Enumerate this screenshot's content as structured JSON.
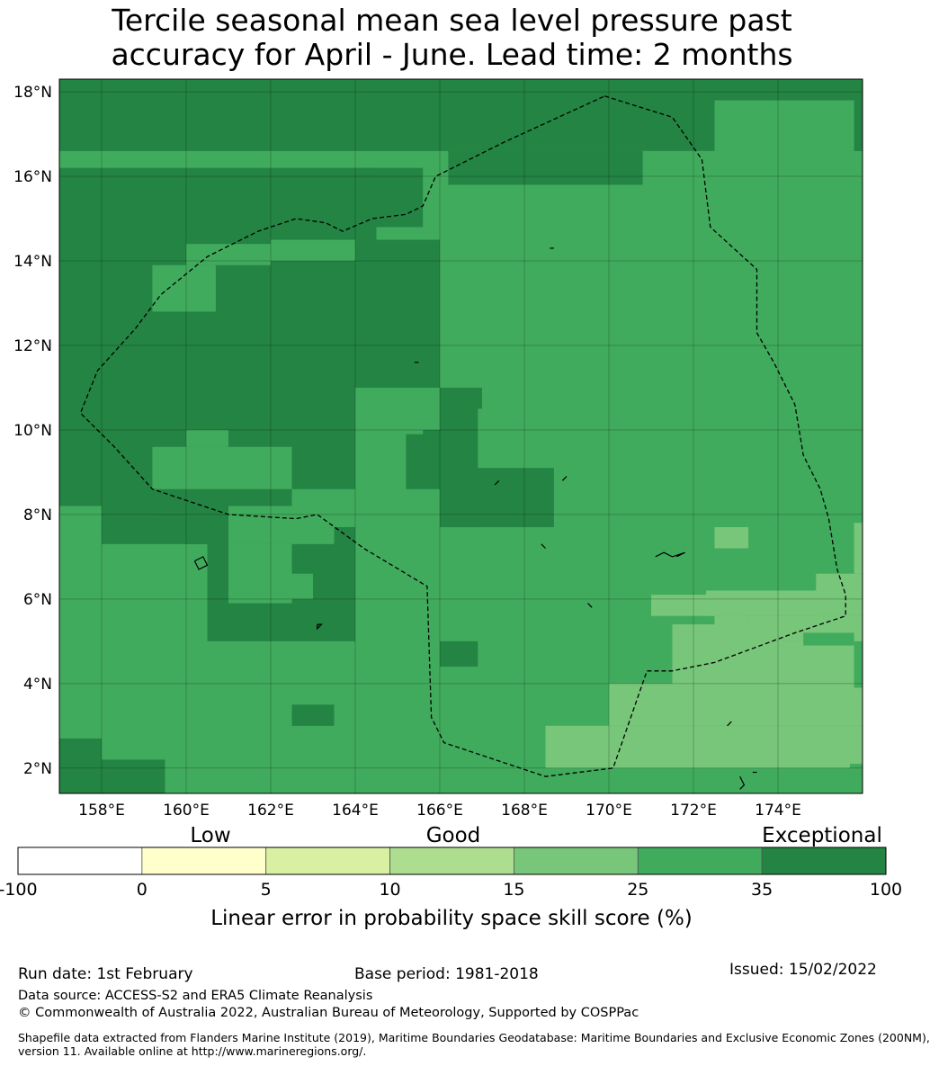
{
  "title": {
    "line1": "Tercile seasonal mean sea level pressure past",
    "line2": "accuracy for April - June. Lead time: 2 months"
  },
  "map": {
    "lon_range": [
      157,
      176
    ],
    "lat_range": [
      1.4,
      18.3
    ],
    "lon_ticks": [
      {
        "value": 158,
        "label": "158°E"
      },
      {
        "value": 160,
        "label": "160°E"
      },
      {
        "value": 162,
        "label": "162°E"
      },
      {
        "value": 164,
        "label": "164°E"
      },
      {
        "value": 166,
        "label": "166°E"
      },
      {
        "value": 168,
        "label": "168°E"
      },
      {
        "value": 170,
        "label": "170°E"
      },
      {
        "value": 172,
        "label": "172°E"
      },
      {
        "value": 174,
        "label": "174°E"
      }
    ],
    "lat_ticks": [
      {
        "value": 18,
        "label": "18°N"
      },
      {
        "value": 16,
        "label": "16°N"
      },
      {
        "value": 14,
        "label": "14°N"
      },
      {
        "value": 12,
        "label": "12°N"
      },
      {
        "value": 10,
        "label": "10°N"
      },
      {
        "value": 8,
        "label": "8°N"
      },
      {
        "value": 6,
        "label": "6°N"
      },
      {
        "value": 4,
        "label": "4°N"
      },
      {
        "value": 2,
        "label": "2°N"
      }
    ],
    "background_class": 5,
    "skill_regions": [
      {
        "class": 6,
        "cells": [
          [
            157,
            16.6,
            176,
            18.3
          ]
        ]
      },
      {
        "class": 5,
        "cells": [
          [
            172.5,
            15.8,
            175.8,
            17.8
          ],
          [
            170.8,
            15.0,
            175.8,
            16.6
          ],
          [
            165,
            14.8,
            175.8,
            15.0
          ],
          [
            167.5,
            4.4,
            175.8,
            14.8
          ],
          [
            164,
            7.7,
            167.5,
            14.2
          ],
          [
            166,
            4.4,
            167.5,
            7.7
          ]
        ]
      },
      {
        "class": 6,
        "cells": [
          [
            157,
            14.5,
            164.5,
            16.2
          ],
          [
            164,
            14.8,
            165.6,
            16.2
          ],
          [
            166.2,
            15.8,
            170.8,
            16.6
          ],
          [
            157,
            5.0,
            164,
            14.5
          ],
          [
            164,
            11.0,
            166,
            14.5
          ],
          [
            166,
            10.5,
            167,
            11.0
          ],
          [
            166,
            7.7,
            168.7,
            9.1
          ],
          [
            166,
            7.7,
            166.9,
            10.5
          ],
          [
            165.2,
            8.6,
            166,
            10.0
          ]
        ]
      },
      {
        "class": 5,
        "cells": [
          [
            157,
            3.5,
            158,
            8.2
          ],
          [
            158,
            4.4,
            160.5,
            7.3
          ],
          [
            159.2,
            8.6,
            162.5,
            9.6
          ],
          [
            160,
            9.6,
            161,
            10.0
          ],
          [
            159.2,
            12.8,
            160.7,
            13.9
          ],
          [
            160,
            13.9,
            162,
            14.4
          ],
          [
            162,
            14.0,
            164,
            14.5
          ],
          [
            161,
            7.3,
            163.5,
            8.2
          ],
          [
            162.5,
            7.7,
            164,
            8.6
          ],
          [
            161,
            5.9,
            162.5,
            7.3
          ],
          [
            162.5,
            6.0,
            163,
            6.6
          ],
          [
            157,
            3.0,
            162.5,
            4.4
          ],
          [
            157,
            2.2,
            166,
            3.0
          ],
          [
            159.5,
            1.4,
            168.5,
            2.2
          ],
          [
            164,
            4.4,
            165.7,
            6.0
          ],
          [
            166,
            2.2,
            167.5,
            4.4
          ],
          [
            164.7,
            9.9,
            165.6,
            10.5
          ]
        ]
      },
      {
        "class": 6,
        "cells": [
          [
            157,
            1.4,
            158,
            2.7
          ],
          [
            158,
            1.4,
            159.5,
            2.2
          ],
          [
            162.5,
            3.0,
            163.5,
            3.5
          ],
          [
            166,
            4.4,
            166.9,
            5.0
          ],
          [
            160,
            7.3,
            161,
            7.9
          ],
          [
            159.2,
            8.0,
            160,
            8.5
          ]
        ]
      },
      {
        "class": 4,
        "cells": [
          [
            168.5,
            2.0,
            176,
            3.0
          ],
          [
            170,
            3.0,
            176,
            4.0
          ],
          [
            171.5,
            4.0,
            175.8,
            5.0
          ],
          [
            171.5,
            4.0,
            174,
            5.4
          ],
          [
            173.3,
            5.0,
            176,
            5.6
          ],
          [
            172.3,
            5.6,
            175.8,
            6.2
          ],
          [
            171,
            5.6,
            173.3,
            6.1
          ],
          [
            172.5,
            5.2,
            173.3,
            5.6
          ],
          [
            172.5,
            7.2,
            173.3,
            7.7
          ],
          [
            174.9,
            5.6,
            176,
            6.6
          ],
          [
            175.8,
            6.6,
            176,
            7.8
          ]
        ]
      },
      {
        "class": 5,
        "cells": [
          [
            174.6,
            4.9,
            175.8,
            5.2
          ],
          [
            175.7,
            1.4,
            176,
            2.1
          ],
          [
            173.7,
            1.4,
            174.7,
            1.6
          ],
          [
            175.8,
            3.9,
            176,
            4.4
          ]
        ]
      }
    ],
    "zones": [
      {
        "name": "zone-east",
        "path": [
          [
            169.9,
            17.9
          ],
          [
            171.5,
            17.4
          ],
          [
            172.2,
            16.4
          ],
          [
            172.4,
            14.8
          ],
          [
            173.5,
            13.8
          ],
          [
            173.5,
            12.3
          ],
          [
            173.9,
            11.6
          ],
          [
            174.4,
            10.6
          ],
          [
            174.6,
            9.4
          ],
          [
            175.0,
            8.6
          ],
          [
            175.2,
            7.9
          ],
          [
            175.4,
            6.7
          ],
          [
            175.6,
            6.1
          ],
          [
            175.6,
            5.6
          ],
          [
            174.4,
            5.2
          ],
          [
            172.5,
            4.5
          ],
          [
            171.5,
            4.3
          ],
          [
            170.9,
            4.3
          ],
          [
            170.1,
            2.0
          ],
          [
            168.5,
            1.8
          ],
          [
            166.1,
            2.6
          ],
          [
            165.8,
            3.2
          ],
          [
            165.7,
            6.3
          ],
          [
            164.2,
            7.2
          ],
          [
            163.1,
            8.0
          ],
          [
            162.6,
            7.9
          ],
          [
            161.0,
            8.0
          ],
          [
            159.2,
            8.6
          ],
          [
            158.3,
            9.6
          ],
          [
            157.5,
            10.4
          ],
          [
            157.9,
            11.4
          ],
          [
            158.8,
            12.4
          ],
          [
            159.4,
            13.2
          ],
          [
            160.5,
            14.1
          ],
          [
            161.7,
            14.7
          ],
          [
            162.6,
            15.0
          ],
          [
            163.3,
            14.9
          ],
          [
            163.7,
            14.7
          ],
          [
            164.4,
            15.0
          ],
          [
            165.2,
            15.1
          ],
          [
            165.6,
            15.3
          ],
          [
            165.9,
            16.0
          ],
          [
            167.5,
            16.8
          ],
          [
            169.9,
            17.9
          ]
        ]
      }
    ],
    "islands": [
      {
        "name": "island",
        "path": [
          [
            160.2,
            6.9
          ],
          [
            160.4,
            7.0
          ],
          [
            160.5,
            6.8
          ],
          [
            160.3,
            6.7
          ],
          [
            160.2,
            6.9
          ]
        ]
      },
      {
        "name": "island",
        "path": [
          [
            163.1,
            5.4
          ],
          [
            163.2,
            5.4
          ],
          [
            163.1,
            5.3
          ],
          [
            163.1,
            5.4
          ]
        ]
      },
      {
        "name": "island",
        "path": [
          [
            171.1,
            7.0
          ],
          [
            171.3,
            7.1
          ],
          [
            171.5,
            7.0
          ],
          [
            171.8,
            7.1
          ],
          [
            171.6,
            7.0
          ]
        ]
      },
      {
        "name": "island",
        "path": [
          [
            173.1,
            1.8
          ],
          [
            173.2,
            1.6
          ],
          [
            173.1,
            1.5
          ]
        ]
      },
      {
        "name": "island",
        "path": [
          [
            173.4,
            1.9
          ],
          [
            173.5,
            1.9
          ]
        ]
      },
      {
        "name": "island",
        "path": [
          [
            172.8,
            3.0
          ],
          [
            172.9,
            3.1
          ]
        ]
      },
      {
        "name": "island",
        "path": [
          [
            168.9,
            8.8
          ],
          [
            169.0,
            8.9
          ]
        ]
      },
      {
        "name": "island",
        "path": [
          [
            168.6,
            14.3
          ],
          [
            168.7,
            14.3
          ]
        ]
      },
      {
        "name": "island",
        "path": [
          [
            165.4,
            11.6
          ],
          [
            165.5,
            11.6
          ]
        ]
      },
      {
        "name": "island",
        "path": [
          [
            168.4,
            7.3
          ],
          [
            168.5,
            7.2
          ]
        ]
      },
      {
        "name": "island",
        "path": [
          [
            169.5,
            5.9
          ],
          [
            169.6,
            5.8
          ]
        ]
      },
      {
        "name": "island",
        "path": [
          [
            167.3,
            8.7
          ],
          [
            167.4,
            8.8
          ]
        ]
      }
    ]
  },
  "legend": {
    "headings": {
      "low": "Low",
      "good": "Good",
      "exceptional": "Exceptional"
    },
    "bounds": [
      "-100",
      "0",
      "5",
      "10",
      "15",
      "25",
      "35",
      "100"
    ],
    "colors": [
      "#ffffff",
      "#ffffcc",
      "#d9f0a3",
      "#addd8e",
      "#78c679",
      "#41ab5d",
      "#238443"
    ],
    "label": "Linear error in probability space skill score (%)"
  },
  "footer": {
    "run_date": "Run date: 1st February",
    "base_period": "Base period: 1981-2018",
    "issued": "Issued: 15/02/2022",
    "data_source": "Data source: ACCESS-S2 and ERA5 Climate Reanalysis",
    "copyright": "© Commonwealth of Australia 2022, Australian Bureau of Meteorology, Supported by COSPPac",
    "shapefile_1": "Shapefile data extracted from Flanders Marine Institute (2019), Maritime Boundaries Geodatabase: Maritime Boundaries and Exclusive Economic Zones (200NM),",
    "shapefile_2": "version 11. Available online at http://www.marineregions.org/."
  }
}
